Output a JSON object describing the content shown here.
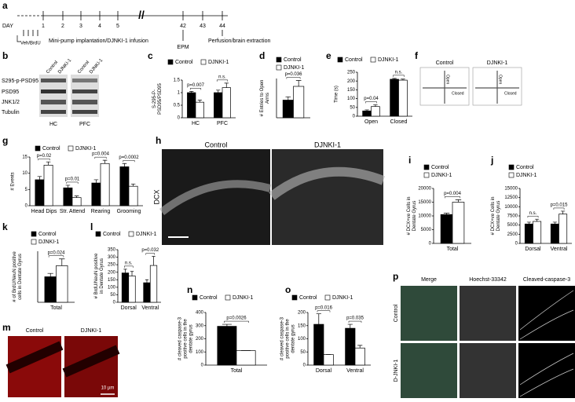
{
  "panel_labels": [
    "a",
    "b",
    "c",
    "d",
    "e",
    "f",
    "g",
    "h",
    "i",
    "j",
    "k",
    "l",
    "m",
    "n",
    "o",
    "p"
  ],
  "timeline": {
    "axis_label": "DAY",
    "days": [
      "1",
      "2",
      "3",
      "4",
      "5",
      "42",
      "43",
      "44"
    ],
    "vehicle": "Veh/BrdU",
    "infusion": "Mini-pump implantation/DJNKI-1 infusion",
    "test": "EPM",
    "end": "Perfusion/brain extraction"
  },
  "blot": {
    "columns": [
      "Control",
      "DJNKI-1",
      "Control",
      "DJNKI-1"
    ],
    "rows": [
      "S295-p-PSD95",
      "PSD95",
      "JNK1/2",
      "Tubulin"
    ],
    "regions": [
      "HC",
      "PFC"
    ]
  },
  "maze": {
    "groups": [
      "Control",
      "DJNKI-1"
    ],
    "arm_labels": [
      "Open",
      "Closed",
      "Open",
      "Closed"
    ]
  },
  "dcx": {
    "groups": [
      "Control",
      "DJNKI-1"
    ],
    "stain": "DCX"
  },
  "brdu_images": {
    "groups": [
      "Control",
      "DJNKI-1"
    ],
    "scale": "10 µm"
  },
  "caspase_images": {
    "columns": [
      "Merge",
      "Hoechst-33342",
      "Cleaved-caspase-3"
    ],
    "rows": [
      "Control",
      "D-JNKI-1"
    ]
  },
  "chart_data": [
    {
      "type": "bar",
      "ylabel": [
        "S-295-P-",
        "PSD95/PSD95"
      ],
      "categories": [
        "HC",
        "PFC"
      ],
      "series": [
        {
          "name": "Control",
          "color": "#000000",
          "values": [
            1.0,
            1.0
          ],
          "errors": [
            0.05,
            0.1
          ]
        },
        {
          "name": "DJNKI-1",
          "color": "#ffffff",
          "values": [
            0.62,
            1.2
          ],
          "errors": [
            0.08,
            0.18
          ]
        }
      ],
      "ylim": [
        0,
        1.5
      ],
      "yticks": [
        0,
        0.5,
        1,
        1.5
      ],
      "annotations": [
        "p=0.007",
        "n.s."
      ]
    },
    {
      "type": "bar",
      "ylabel": [
        "# Entries to Open",
        "Arms"
      ],
      "categories": [
        null
      ],
      "series": [
        {
          "name": "Control",
          "color": "#000000",
          "values": [
            2.7
          ],
          "errors": [
            0.5
          ]
        },
        {
          "name": "DJNKI-1",
          "color": "#ffffff",
          "values": [
            4.8
          ],
          "errors": [
            0.9
          ]
        }
      ],
      "ylim": [
        0,
        6
      ],
      "annotations": [
        "p=0.036"
      ]
    },
    {
      "type": "bar",
      "ylabel": [
        "Time (s)"
      ],
      "categories": [
        "Open",
        "Closed"
      ],
      "series": [
        {
          "name": "Control",
          "color": "#000000",
          "values": [
            30,
            210
          ],
          "errors": [
            6,
            5
          ]
        },
        {
          "name": "DJNKI-1",
          "color": "#ffffff",
          "values": [
            55,
            205
          ],
          "errors": [
            10,
            6
          ]
        }
      ],
      "ylim": [
        0,
        250
      ],
      "yticks": [
        0,
        50,
        100,
        150,
        200,
        250
      ],
      "annotations": [
        "p=0.04",
        "n.s."
      ]
    },
    {
      "type": "bar",
      "ylabel": [
        "# Events"
      ],
      "categories": [
        "Head Dips",
        "Str. Attend",
        "Rearing",
        "Grooming"
      ],
      "series": [
        {
          "name": "Control",
          "color": "#000000",
          "values": [
            8,
            5.5,
            7,
            12
          ],
          "errors": [
            1,
            0.8,
            1,
            1
          ]
        },
        {
          "name": "DJNKI-1",
          "color": "#ffffff",
          "values": [
            12.5,
            2.5,
            13,
            6
          ],
          "errors": [
            1,
            0.5,
            1,
            0.7
          ]
        }
      ],
      "ylim": [
        0,
        15
      ],
      "yticks": [
        0,
        5,
        10,
        15
      ],
      "annotations": [
        "p=0.02",
        "p=0.01",
        "p=0.004",
        "p=0.0002"
      ]
    },
    {
      "type": "bar",
      "ylabel": [
        "# DCX+ve Cells in",
        "Dentate Gyrus"
      ],
      "categories": [
        "Total"
      ],
      "series": [
        {
          "name": "Control",
          "color": "#000000",
          "values": [
            10500
          ],
          "errors": [
            500
          ]
        },
        {
          "name": "DJNKI-1",
          "color": "#ffffff",
          "values": [
            15000
          ],
          "errors": [
            900
          ]
        }
      ],
      "ylim": [
        0,
        20000
      ],
      "yticks": [
        0,
        5000,
        10000,
        15000,
        20000
      ],
      "annotations": [
        "p=0.004"
      ]
    },
    {
      "type": "bar",
      "ylabel": [
        "# DCX+ve Cells in",
        "Dentate Gyrus"
      ],
      "categories": [
        "Dorsal",
        "Ventral"
      ],
      "series": [
        {
          "name": "Control",
          "color": "#000000",
          "values": [
            5300,
            5300
          ],
          "errors": [
            500,
            500
          ]
        },
        {
          "name": "DJNKI-1",
          "color": "#ffffff",
          "values": [
            6000,
            8000
          ],
          "errors": [
            600,
            800
          ]
        }
      ],
      "ylim": [
        0,
        15000
      ],
      "yticks": [
        0,
        2500,
        5000,
        7500,
        10000,
        12500,
        15000
      ],
      "annotations": [
        "n.s.",
        "p=0.015"
      ]
    },
    {
      "type": "bar",
      "ylabel": [
        "# of BrdU/NeuN positive",
        "cells in Dentate Gyrus"
      ],
      "categories": [
        "Total"
      ],
      "series": [
        {
          "name": "Control",
          "color": "#000000",
          "values": [
            300
          ],
          "errors": [
            40
          ]
        },
        {
          "name": "DJNKI-1",
          "color": "#ffffff",
          "values": [
            430
          ],
          "errors": [
            80
          ]
        }
      ],
      "ylim": [
        0,
        600
      ],
      "annotations": [
        "p=0.024"
      ]
    },
    {
      "type": "bar",
      "ylabel": [
        "# BrdU/NeuN positive",
        "in Dentate Gyrus"
      ],
      "categories": [
        "Dorsal",
        "Ventral"
      ],
      "series": [
        {
          "name": "Control",
          "color": "#000000",
          "values": [
            195,
            130
          ],
          "errors": [
            25,
            20
          ]
        },
        {
          "name": "DJNKI-1",
          "color": "#ffffff",
          "values": [
            175,
            245
          ],
          "errors": [
            30,
            60
          ]
        }
      ],
      "ylim": [
        0,
        350
      ],
      "yticks": [
        0,
        50,
        100,
        150,
        200,
        250,
        300,
        350
      ],
      "annotations": [
        "n.s.",
        "p=0.032"
      ]
    },
    {
      "type": "bar",
      "ylabel": [
        "# cleaved caspase-3",
        "positive cells in the",
        "dentate gyrus"
      ],
      "categories": [
        "Total"
      ],
      "series": [
        {
          "name": "Control",
          "color": "#000000",
          "values": [
            295
          ],
          "errors": [
            15
          ]
        },
        {
          "name": "DJNKI-1",
          "color": "#ffffff",
          "values": [
            110
          ],
          "errors": [
            0
          ]
        }
      ],
      "ylim": [
        0,
        400
      ],
      "yticks": [
        0,
        100,
        200,
        300,
        400
      ],
      "annotations": [
        "p=0.0026"
      ]
    },
    {
      "type": "bar",
      "ylabel": [
        "# cleaved caspase-3",
        "positive cells in the",
        "dentate gyrus"
      ],
      "categories": [
        "Dorsal",
        "Ventral"
      ],
      "series": [
        {
          "name": "Control",
          "color": "#000000",
          "values": [
            155,
            140
          ],
          "errors": [
            40,
            15
          ]
        },
        {
          "name": "DJNKI-1",
          "color": "#ffffff",
          "values": [
            40,
            65
          ],
          "errors": [
            0,
            10
          ]
        }
      ],
      "ylim": [
        0,
        200
      ],
      "yticks": [
        0,
        50,
        100,
        150,
        200
      ],
      "annotations": [
        "p=0.016",
        "p=0.035"
      ]
    }
  ]
}
